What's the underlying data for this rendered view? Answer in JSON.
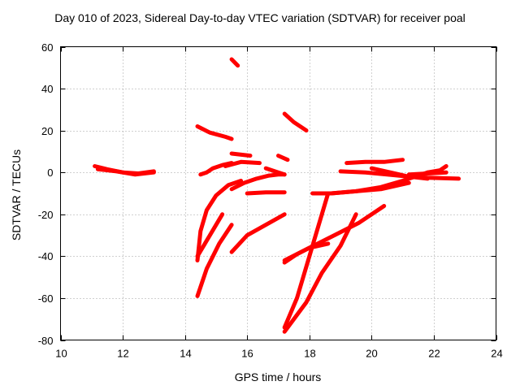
{
  "chart_data": {
    "type": "scatter",
    "title": "Day 010 of 2023, Sidereal Day-to-day VTEC variation (SDTVAR) for receiver poal",
    "xlabel": "GPS time / hours",
    "ylabel": "SDTVAR / TECUs",
    "xlim": [
      10,
      24
    ],
    "ylim": [
      -80,
      60
    ],
    "xticks": [
      10,
      12,
      14,
      16,
      18,
      20,
      22,
      24
    ],
    "yticks": [
      -80,
      -60,
      -40,
      -20,
      0,
      20,
      40,
      60
    ],
    "xtick_labels": [
      "10",
      "12",
      "14",
      "16",
      "18",
      "20",
      "22",
      "24"
    ],
    "ytick_labels": [
      "-80",
      "-60",
      "-40",
      "-20",
      "0",
      "20",
      "40",
      "60"
    ],
    "grid": true,
    "marker": "+",
    "color": "#ff0000",
    "series": [
      {
        "x": [
          11.1,
          11.5,
          12.0,
          12.5,
          13.0
        ],
        "y": [
          3,
          1.5,
          0,
          -0.5,
          0.5
        ]
      },
      {
        "x": [
          11.2,
          11.8,
          12.4,
          13.0
        ],
        "y": [
          1.5,
          0.5,
          -1,
          0
        ]
      },
      {
        "x": [
          14.4,
          14.8,
          15.3,
          15.5
        ],
        "y": [
          22,
          19,
          17,
          16
        ]
      },
      {
        "x": [
          14.5,
          14.7,
          14.9,
          15.2,
          15.5
        ],
        "y": [
          -1,
          0,
          2,
          3.5,
          4.5
        ]
      },
      {
        "x": [
          15.5,
          16.1
        ],
        "y": [
          9,
          8
        ]
      },
      {
        "x": [
          15.5,
          15.7
        ],
        "y": [
          54,
          51
        ]
      },
      {
        "x": [
          15.3,
          15.8,
          16.4
        ],
        "y": [
          3,
          5,
          4.5
        ]
      },
      {
        "x": [
          15.5,
          15.9,
          16.3,
          16.7,
          17.0,
          17.2
        ],
        "y": [
          -8,
          -5,
          -3,
          -1.5,
          -1,
          -1
        ]
      },
      {
        "x": [
          16.6,
          17.0,
          17.2
        ],
        "y": [
          2,
          0,
          -1
        ]
      },
      {
        "x": [
          16.0,
          16.6,
          17.2
        ],
        "y": [
          -10,
          -9.5,
          -9.5
        ]
      },
      {
        "x": [
          17.0,
          17.3
        ],
        "y": [
          8,
          6
        ]
      },
      {
        "x": [
          17.2,
          17.5,
          17.9
        ],
        "y": [
          28,
          24,
          20
        ]
      },
      {
        "x": [
          14.4,
          14.5,
          14.7,
          15.0,
          15.4,
          15.8
        ],
        "y": [
          -42,
          -28,
          -18,
          -11,
          -6,
          -4
        ]
      },
      {
        "x": [
          14.4,
          14.8,
          15.2
        ],
        "y": [
          -40,
          -30,
          -20
        ]
      },
      {
        "x": [
          14.4,
          14.7,
          15.1,
          15.5
        ],
        "y": [
          -59,
          -46,
          -34,
          -25
        ]
      },
      {
        "x": [
          15.5,
          16.0,
          16.6,
          17.2
        ],
        "y": [
          -38,
          -30,
          -25,
          -20
        ]
      },
      {
        "x": [
          17.2,
          17.6,
          18.0,
          18.6
        ],
        "y": [
          -74,
          -60,
          -40,
          -10
        ]
      },
      {
        "x": [
          17.2,
          17.9,
          18.4,
          19.0,
          19.5
        ],
        "y": [
          -76,
          -62,
          -48,
          -35,
          -20
        ]
      },
      {
        "x": [
          17.2,
          17.6,
          18.0,
          18.6
        ],
        "y": [
          -43,
          -39,
          -36,
          -34
        ]
      },
      {
        "x": [
          17.2,
          18.0,
          18.8,
          19.6,
          20.4
        ],
        "y": [
          -42,
          -36,
          -30,
          -24,
          -16
        ]
      },
      {
        "x": [
          18.1,
          18.7,
          19.5,
          20.3,
          21.2
        ],
        "y": [
          -10,
          -10,
          -9,
          -8,
          -5
        ]
      },
      {
        "x": [
          18.7,
          19.5,
          20.3,
          21.0,
          21.8
        ],
        "y": [
          -10,
          -9,
          -7,
          -4,
          0
        ]
      },
      {
        "x": [
          19.0,
          19.8,
          20.5,
          21.2,
          21.8
        ],
        "y": [
          0.5,
          0,
          -1,
          -2,
          -3
        ]
      },
      {
        "x": [
          20.0,
          20.6,
          21.2,
          21.8,
          22.8
        ],
        "y": [
          2,
          0,
          -2,
          -2.5,
          -3
        ]
      },
      {
        "x": [
          19.2,
          19.8,
          20.4,
          21.0
        ],
        "y": [
          4.5,
          5,
          5,
          6
        ]
      },
      {
        "x": [
          21.2,
          21.8,
          22.4
        ],
        "y": [
          -1,
          -0.5,
          0
        ]
      },
      {
        "x": [
          21.8,
          22.2,
          22.4
        ],
        "y": [
          0,
          1,
          3
        ]
      }
    ]
  }
}
